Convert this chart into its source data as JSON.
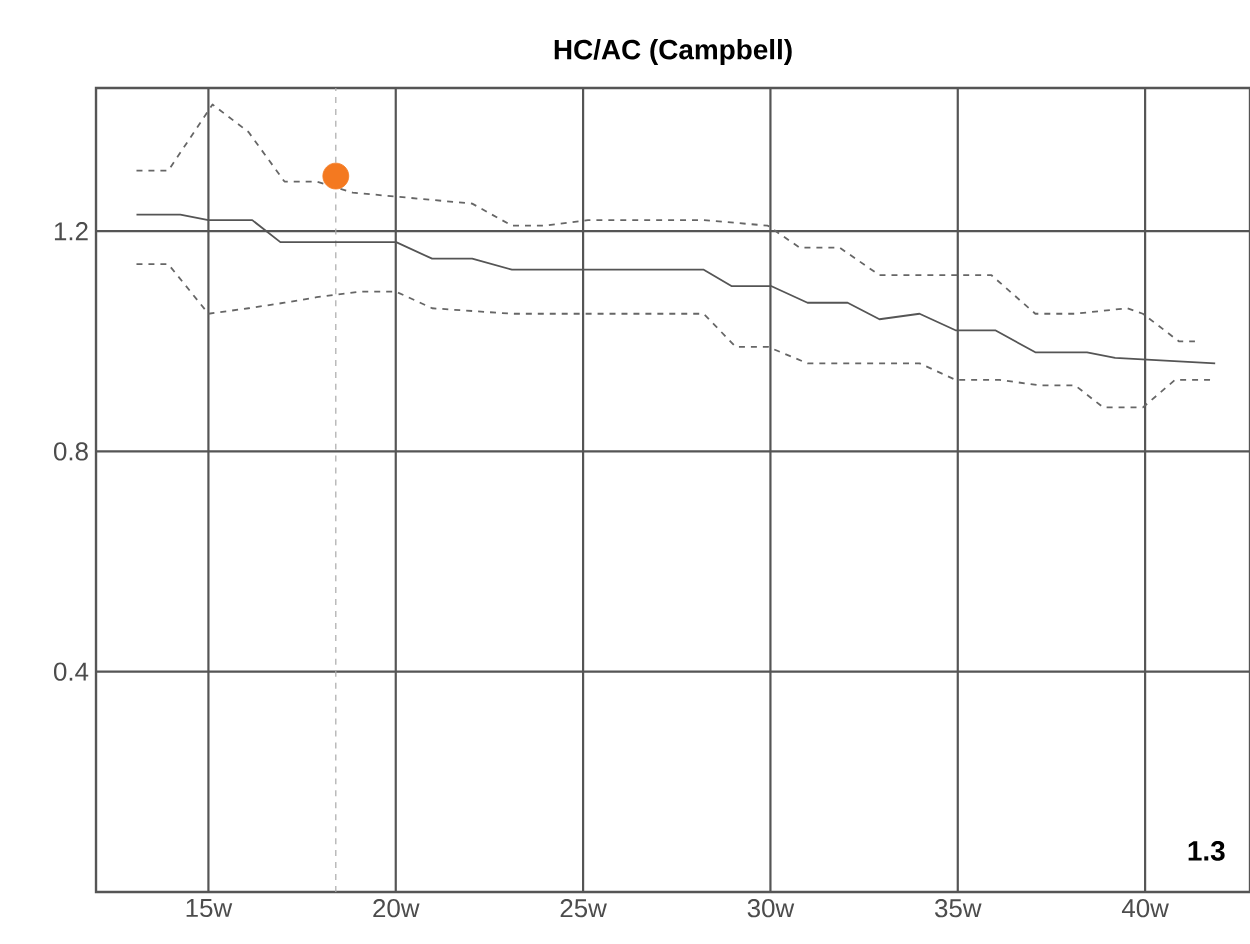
{
  "chart_data": {
    "type": "line",
    "title": "HC/AC (Campbell)",
    "xlim": [
      12,
      42.8
    ],
    "ylim": [
      0,
      1.46
    ],
    "xticks": [
      {
        "value": 15,
        "label": "15w"
      },
      {
        "value": 20,
        "label": "20w"
      },
      {
        "value": 25,
        "label": "25w"
      },
      {
        "value": 30,
        "label": "30w"
      },
      {
        "value": 35,
        "label": "35w"
      },
      {
        "value": 40,
        "label": "40w"
      }
    ],
    "yticks": [
      0.4,
      0.8,
      1.2
    ],
    "grid": true,
    "series": [
      {
        "color": "#666666",
        "line_style": "dashed",
        "x": [
          13.08,
          13.93,
          15.11,
          16.07,
          17.03,
          17.89,
          18.85,
          22.04,
          23.1,
          23.96,
          25.13,
          28.22,
          29.93,
          30.78,
          31.85,
          32.91,
          35.9,
          37.07,
          38.13,
          39.52,
          39.94,
          40.9,
          41.33
        ],
        "values": [
          1.31,
          1.31,
          1.43,
          1.38,
          1.29,
          1.29,
          1.27,
          1.25,
          1.21,
          1.21,
          1.22,
          1.22,
          1.21,
          1.17,
          1.17,
          1.12,
          1.12,
          1.05,
          1.05,
          1.06,
          1.05,
          1.0,
          1.0
        ]
      },
      {
        "color": "#555555",
        "line_style": "solid",
        "x": [
          13.08,
          14.25,
          15.0,
          16.17,
          16.92,
          20.01,
          20.97,
          22.04,
          23.1,
          28.22,
          28.97,
          30.03,
          30.99,
          32.06,
          32.91,
          33.98,
          34.94,
          36.0,
          37.07,
          38.45,
          39.2,
          41.87
        ],
        "values": [
          1.23,
          1.23,
          1.22,
          1.22,
          1.18,
          1.18,
          1.15,
          1.15,
          1.13,
          1.13,
          1.1,
          1.1,
          1.07,
          1.07,
          1.04,
          1.05,
          1.02,
          1.02,
          0.98,
          0.98,
          0.97,
          0.96
        ]
      },
      {
        "color": "#666666",
        "line_style": "dashed",
        "x": [
          13.08,
          13.93,
          15.0,
          16.07,
          17.03,
          17.89,
          19.05,
          20.01,
          20.97,
          23.1,
          24.38,
          28.22,
          29.07,
          29.93,
          30.99,
          33.98,
          34.94,
          36.11,
          37.18,
          38.13,
          38.88,
          39.94,
          40.8,
          41.76
        ],
        "values": [
          1.14,
          1.14,
          1.05,
          1.06,
          1.07,
          1.08,
          1.09,
          1.09,
          1.06,
          1.05,
          1.05,
          1.05,
          0.99,
          0.99,
          0.96,
          0.96,
          0.93,
          0.93,
          0.92,
          0.92,
          0.88,
          0.88,
          0.93,
          0.93
        ]
      },
      {
        "type": "scatter",
        "marker": "circle",
        "color": "#f47920",
        "x": [
          18.4
        ],
        "values": [
          1.3
        ]
      }
    ],
    "ref_lines": [
      {
        "axis": "x",
        "value": 18.4,
        "color": "#aaaaaa",
        "line_style": "dashed"
      }
    ],
    "annotations": [
      "**1.3**"
    ]
  }
}
